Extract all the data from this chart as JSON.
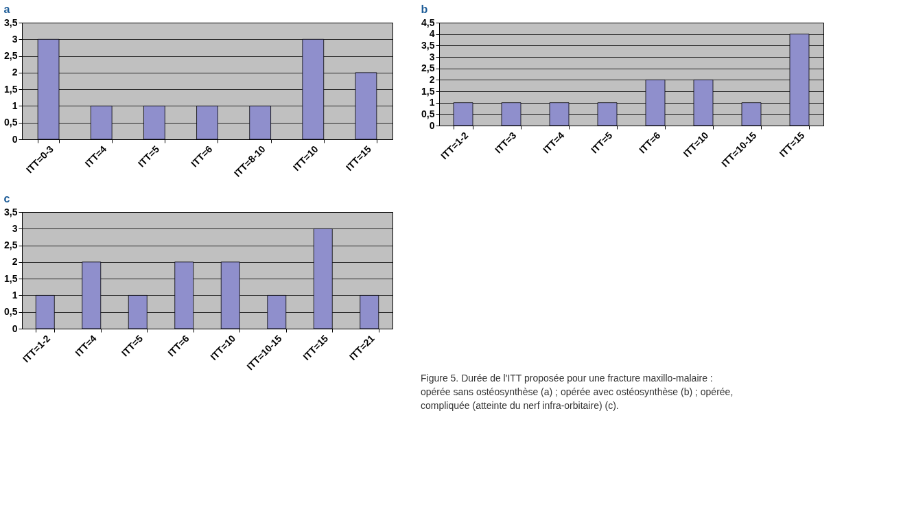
{
  "chart_data": [
    {
      "type": "bar",
      "title": "a",
      "categories": [
        "ITT=0-3",
        "ITT=4",
        "ITT=5",
        "ITT=6",
        "ITT=8-10",
        "ITT=10",
        "ITT=15"
      ],
      "values": [
        3,
        1,
        1,
        1,
        1,
        3,
        2
      ],
      "color": "#8f8fcc",
      "ylim": [
        0,
        3.5
      ],
      "yticks": [
        0,
        {
          "value": 0.5,
          "label": "0,5"
        },
        1,
        {
          "value": 1.5,
          "label": "1,5"
        },
        2,
        {
          "value": 2.5,
          "label": "2,5"
        },
        3,
        {
          "value": 3.5,
          "label": "3,5"
        }
      ],
      "grid": "y"
    },
    {
      "type": "bar",
      "title": "b",
      "categories": [
        "ITT=1-2",
        "ITT=3",
        "ITT=4",
        "ITT=5",
        "ITT=6",
        "ITT=10",
        "ITT=10-15",
        "ITT=15"
      ],
      "values": [
        1,
        1,
        1,
        1,
        2,
        2,
        1,
        4
      ],
      "color": "#8f8fcc",
      "ylim": [
        0,
        4.5
      ],
      "yticks": [
        0,
        {
          "value": 0.5,
          "label": "0,5"
        },
        1,
        {
          "value": 1.5,
          "label": "1,5"
        },
        2,
        {
          "value": 2.5,
          "label": "2,5"
        },
        3,
        {
          "value": 3.5,
          "label": "3,5"
        },
        4,
        {
          "value": 4.5,
          "label": "4,5"
        }
      ],
      "grid": "y"
    },
    {
      "type": "bar",
      "title": "c",
      "categories": [
        "ITT=1-2",
        "ITT=4",
        "ITT=5",
        "ITT=6",
        "ITT=10",
        "ITT=10-15",
        "ITT=15",
        "ITT=21"
      ],
      "values": [
        1,
        2,
        1,
        2,
        2,
        1,
        3,
        1
      ],
      "color": "#8f8fcc",
      "ylim": [
        0,
        3.5
      ],
      "yticks": [
        0,
        {
          "value": 0.5,
          "label": "0,5"
        },
        1,
        {
          "value": 1.5,
          "label": "1,5"
        },
        2,
        {
          "value": 2.5,
          "label": "2,5"
        },
        3,
        {
          "value": 3.5,
          "label": "3,5"
        }
      ],
      "grid": "y",
      "annotations": [
        "Figure 5. Durée de l'ITT proposée pour une fracture maxillo-malaire : opérée sans ostéosynthèse (a) ; opérée avec ostéosynthèse (b) ; opérée, compliquée (atteinte du nerf infra-orbitaire) (c)."
      ]
    }
  ]
}
